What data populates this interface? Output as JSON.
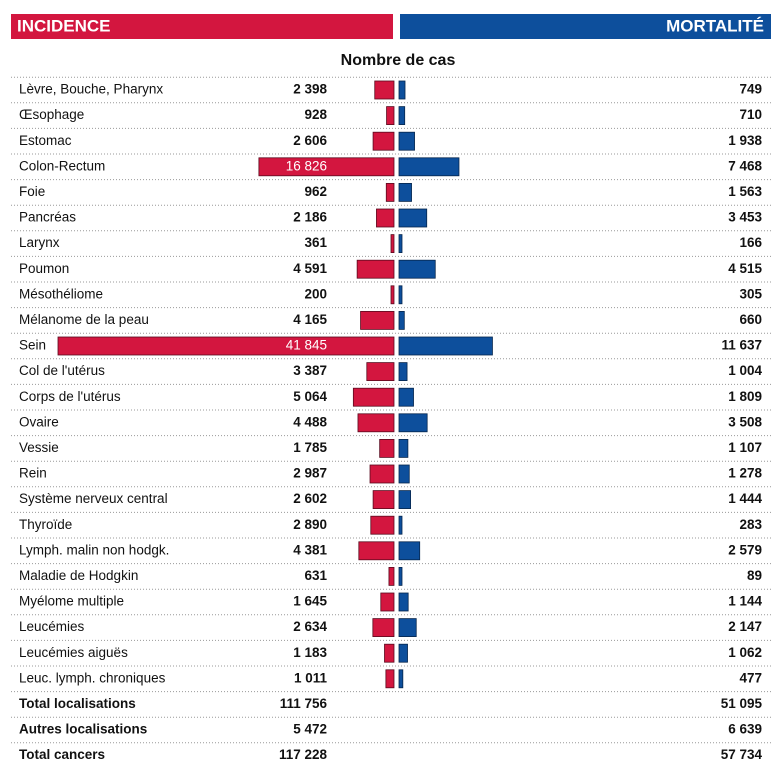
{
  "chart_data": {
    "type": "butterfly",
    "title": "Nombre de cas",
    "categories": [
      "Lèvre, Bouche, Pharynx",
      "Œsophage",
      "Estomac",
      "Colon-Rectum",
      "Foie",
      "Pancréas",
      "Larynx",
      "Poumon",
      "Mésothéliome",
      "Mélanome de la peau",
      "Sein",
      "Col de l'utérus",
      "Corps de l'utérus",
      "Ovaire",
      "Vessie",
      "Rein",
      "Système nerveux central",
      "Thyroïde",
      "Lymph. malin non hodgk.",
      "Maladie de Hodgkin",
      "Myélome multiple",
      "Leucémies",
      "Leucémies aiguës",
      "Leuc. lymph. chroniques"
    ],
    "series": [
      {
        "name": "INCIDENCE",
        "color": "#d3163f",
        "values": [
          2398,
          928,
          2606,
          16826,
          962,
          2186,
          361,
          4591,
          200,
          4165,
          41845,
          3387,
          5064,
          4488,
          1785,
          2987,
          2602,
          2890,
          4381,
          631,
          1645,
          2634,
          1183,
          1011
        ],
        "value_labels": [
          "2 398",
          "928",
          "2 606",
          "16 826",
          "962",
          "2 186",
          "361",
          "4 591",
          "200",
          "4 165",
          "41 845",
          "3 387",
          "5 064",
          "4 488",
          "1 785",
          "2 987",
          "2 602",
          "2 890",
          "4 381",
          "631",
          "1 645",
          "2 634",
          "1 183",
          "1 011"
        ]
      },
      {
        "name": "MORTALITÉ",
        "color": "#0d4f9c",
        "values": [
          749,
          710,
          1938,
          7468,
          1563,
          3453,
          166,
          4515,
          305,
          660,
          11637,
          1004,
          1809,
          3508,
          1107,
          1278,
          1444,
          283,
          2579,
          89,
          1144,
          2147,
          1062,
          477
        ],
        "value_labels": [
          "749",
          "710",
          "1 938",
          "7 468",
          "1 563",
          "3 453",
          "166",
          "4 515",
          "305",
          "660",
          "11 637",
          "1 004",
          "1 809",
          "3 508",
          "1 107",
          "1 278",
          "1 444",
          "283",
          "2 579",
          "89",
          "1 144",
          "2 147",
          "1 062",
          "477"
        ]
      }
    ],
    "totals": [
      {
        "name": "Total localisations",
        "incidence": "111 756",
        "mortality": "51 095"
      },
      {
        "name": "Autres localisations",
        "incidence": "5 472",
        "mortality": "6 639"
      },
      {
        "name": "Total cancers",
        "incidence": "117 228",
        "mortality": "57 734"
      }
    ]
  }
}
